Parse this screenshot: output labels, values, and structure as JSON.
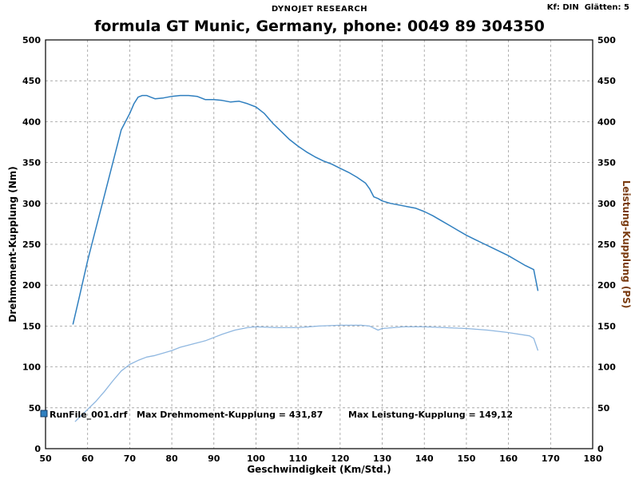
{
  "header": {
    "company": "DYNOJET RESEARCH",
    "title": "formula GT  Munic, Germany, phone: 0049 89 304350",
    "kf_label": "Kf: DIN",
    "smoothing_label": "Glätten: 5"
  },
  "annotation": {
    "file": "RunFile_001.drf",
    "max_torque_text": "Max Drehmoment-Kupplung = 431,87",
    "max_power_text": "Max Leistung-Kupplung = 149,12"
  },
  "colors": {
    "torque": "#2f7fbf",
    "power": "#8fb7e0",
    "grid": "#9a9a9a",
    "ylabel_right": "#7a3b10"
  },
  "chart_data": {
    "type": "line",
    "xlabel": "Geschwindigkeit (Km/Std.)",
    "ylabel": "Drehmoment-Kupplung (Nm)",
    "ylabel_right": "Leistung-Kupplung (PS)",
    "xlim": [
      50,
      180
    ],
    "ylim": [
      0,
      500
    ],
    "ylim_right": [
      0,
      500
    ],
    "xticks": [
      50,
      60,
      70,
      80,
      90,
      100,
      110,
      120,
      130,
      140,
      150,
      160,
      170,
      180
    ],
    "yticks": [
      0,
      50,
      100,
      150,
      200,
      250,
      300,
      350,
      400,
      450,
      500
    ],
    "grid": true,
    "series": [
      {
        "name": "Drehmoment-Kupplung",
        "axis": "left",
        "x": [
          56.5,
          58,
          60,
          62,
          64,
          66,
          68,
          70,
          71,
          72,
          73,
          74,
          75,
          76,
          78,
          80,
          82,
          84,
          86,
          88,
          90,
          92,
          94,
          96,
          98,
          100,
          102,
          104,
          106,
          108,
          110,
          112,
          114,
          116,
          118,
          120,
          122,
          124,
          126,
          127,
          128,
          129,
          130,
          132,
          134,
          136,
          138,
          140,
          142,
          144,
          146,
          148,
          150,
          152,
          154,
          156,
          158,
          160,
          162,
          164,
          166,
          167
        ],
        "values": [
          152,
          185,
          230,
          270,
          310,
          350,
          390,
          410,
          422,
          430,
          432,
          432,
          430,
          428,
          429,
          431,
          432,
          432,
          431,
          427,
          427,
          426,
          424,
          425,
          422,
          418,
          410,
          398,
          388,
          378,
          370,
          363,
          357,
          352,
          348,
          343,
          338,
          332,
          325,
          318,
          308,
          306,
          303,
          300,
          298,
          296,
          294,
          290,
          285,
          279,
          273,
          267,
          261,
          256,
          251,
          246,
          241,
          236,
          230,
          224,
          219,
          193
        ]
      },
      {
        "name": "Leistung-Kupplung",
        "axis": "right",
        "x": [
          57,
          60,
          62,
          64,
          66,
          68,
          70,
          72,
          74,
          76,
          78,
          80,
          82,
          85,
          88,
          90,
          92,
          95,
          98,
          100,
          105,
          110,
          115,
          120,
          125,
          127,
          129,
          130,
          135,
          140,
          145,
          150,
          155,
          160,
          165,
          166,
          167
        ],
        "values": [
          33,
          48,
          58,
          70,
          83,
          95,
          103,
          108,
          112,
          114,
          117,
          120,
          124,
          128,
          132,
          136,
          140,
          145,
          148,
          149,
          148,
          148,
          150,
          151,
          151,
          150,
          145,
          147,
          149,
          149,
          148,
          147,
          145,
          142,
          138,
          135,
          120
        ]
      }
    ]
  }
}
